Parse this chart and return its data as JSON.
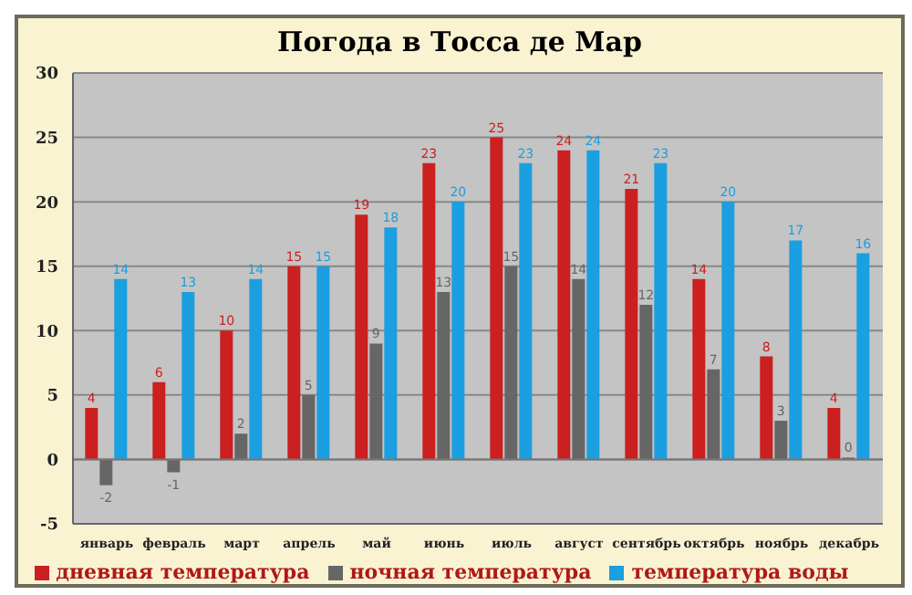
{
  "chart_data": {
    "type": "bar",
    "title": "Погода в Тосса де Мар",
    "categories": [
      "январь",
      "февраль",
      "март",
      "апрель",
      "май",
      "июнь",
      "июль",
      "август",
      "сентябрь",
      "октябрь",
      "ноябрь",
      "декабрь"
    ],
    "series": [
      {
        "name": "дневная температура",
        "color": "#cc1f1f",
        "values": [
          4,
          6,
          10,
          15,
          19,
          23,
          25,
          24,
          21,
          14,
          8,
          4
        ]
      },
      {
        "name": "ночная температура",
        "color": "#666666",
        "values": [
          -2,
          -1,
          2,
          5,
          9,
          13,
          15,
          14,
          12,
          7,
          3,
          0
        ]
      },
      {
        "name": "температура воды",
        "color": "#1a9fe0",
        "values": [
          14,
          13,
          14,
          15,
          18,
          20,
          23,
          24,
          23,
          20,
          17,
          16
        ]
      }
    ],
    "ylim": [
      -5,
      30
    ],
    "yticks": [
      -5,
      0,
      5,
      10,
      15,
      20,
      25,
      30
    ],
    "grid": "y",
    "legend": "bottom",
    "data_labels": true
  }
}
